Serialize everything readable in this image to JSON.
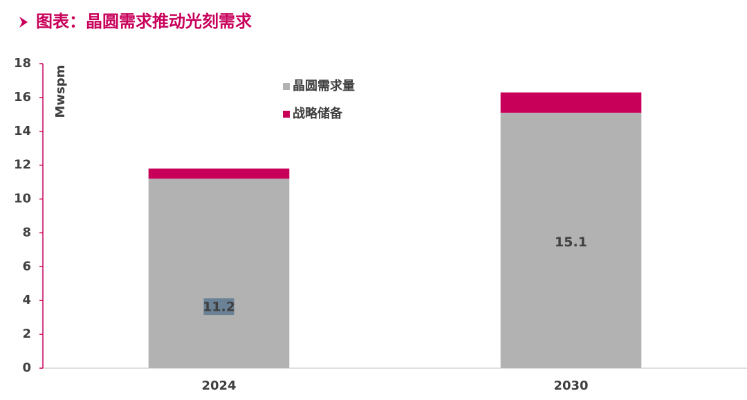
{
  "chart_data": {
    "type": "stacked_bar",
    "title": "图表：晶圆需求推动光刻需求",
    "y_label": "Mwspm",
    "categories": [
      "2024",
      "2030"
    ],
    "series": [
      {
        "name": "晶圆需求量",
        "color": "#b2b2b2",
        "values": [
          11.2,
          15.1
        ],
        "show_labels": true
      },
      {
        "name": "战略储备",
        "color": "#c8005a",
        "values": [
          0.6,
          1.2
        ]
      }
    ],
    "ylim": [
      0,
      18
    ],
    "yticks": [
      0,
      2,
      4,
      6,
      8,
      10,
      12,
      14,
      16,
      18
    ],
    "grid": false
  }
}
